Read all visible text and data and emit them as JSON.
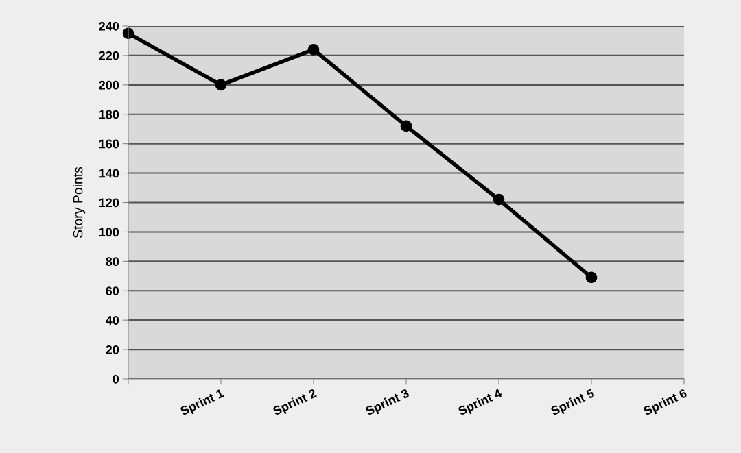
{
  "chart_data": {
    "type": "line",
    "ylabel": "Story Points",
    "categories": [
      null,
      "Sprint 1",
      "Sprint 2",
      "Sprint 3",
      "Sprint 4",
      "Sprint 5",
      "Sprint 6"
    ],
    "series": [
      {
        "color": "#000000",
        "values": [
          235,
          200,
          224,
          172,
          122,
          69,
          null
        ]
      }
    ],
    "ylim": [
      0,
      240
    ],
    "yticks": [
      0,
      20,
      40,
      60,
      80,
      100,
      120,
      140,
      160,
      180,
      200,
      220,
      240
    ],
    "grid": "y",
    "marker": "circle",
    "line_style": "solid",
    "legend": false
  }
}
